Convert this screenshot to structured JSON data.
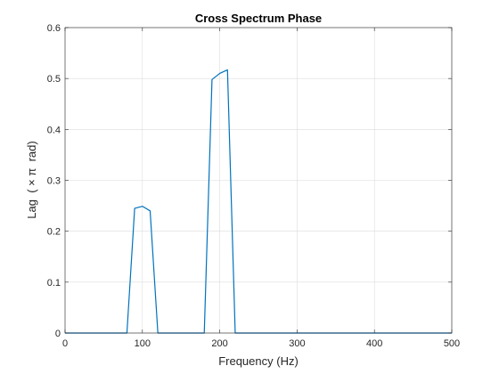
{
  "chart_data": {
    "type": "line",
    "title": "Cross Spectrum Phase",
    "xlabel": "Frequency (Hz)",
    "ylabel": "Lag  ( × π  rad)",
    "xlim": [
      0,
      500
    ],
    "ylim": [
      0,
      0.6
    ],
    "grid": true,
    "xticks": [
      0,
      100,
      200,
      300,
      400,
      500
    ],
    "xtick_labels": [
      "0",
      "100",
      "200",
      "300",
      "400",
      "500"
    ],
    "yticks": [
      0,
      0.1,
      0.2,
      0.3,
      0.4,
      0.5,
      0.6
    ],
    "ytick_labels": [
      "0",
      "0.1",
      "0.2",
      "0.3",
      "0.4",
      "0.5",
      "0.6"
    ],
    "series": [
      {
        "color": "#0072BD",
        "x": [
          0,
          80,
          90,
          100,
          110,
          120,
          180,
          190,
          200,
          210,
          220,
          500
        ],
        "y": [
          0,
          0,
          0.245,
          0.249,
          0.24,
          0,
          0,
          0.498,
          0.51,
          0.517,
          0,
          0
        ]
      }
    ]
  }
}
